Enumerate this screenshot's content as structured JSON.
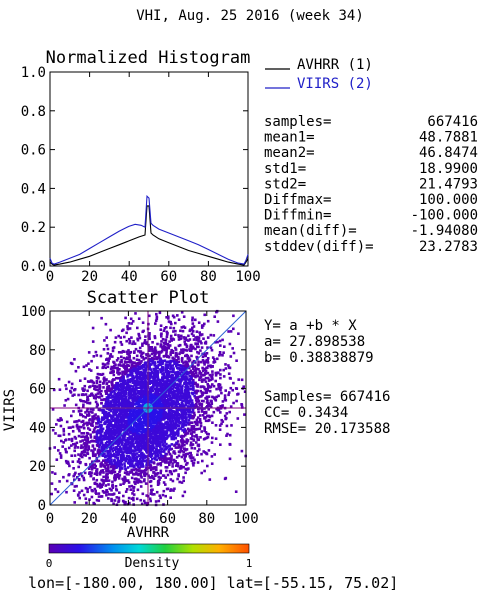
{
  "header": {
    "title": "VHI,  Aug. 25 2016 (week 34)"
  },
  "histogram": {
    "title": "Normalized Histogram",
    "legend": [
      {
        "label": "AVHRR (1)",
        "color": "#000000"
      },
      {
        "label": "VIIRS (2)",
        "color": "#2020c8"
      }
    ],
    "xticks": [
      "0",
      "20",
      "40",
      "60",
      "80",
      "100"
    ],
    "yticks": [
      "0.0",
      "0.2",
      "0.4",
      "0.6",
      "0.8",
      "1.0"
    ]
  },
  "stats": [
    {
      "label": "samples=",
      "value": "667416"
    },
    {
      "label": "mean1=",
      "value": "48.7881"
    },
    {
      "label": "mean2=",
      "value": "46.8474"
    },
    {
      "label": "std1=",
      "value": "18.9900"
    },
    {
      "label": "std2=",
      "value": "21.4793"
    },
    {
      "label": "Diffmax=",
      "value": "100.000"
    },
    {
      "label": "Diffmin=",
      "value": "-100.000"
    },
    {
      "label": "mean(diff)=",
      "value": "-1.94080"
    },
    {
      "label": "stddev(diff)=",
      "value": "23.2783"
    }
  ],
  "scatter": {
    "title": "Scatter Plot",
    "xlabel": "AVHRR",
    "ylabel": "VIIRS",
    "xticks": [
      "0",
      "20",
      "40",
      "60",
      "80",
      "100"
    ],
    "yticks": [
      "0",
      "20",
      "40",
      "60",
      "80",
      "100"
    ]
  },
  "regression": {
    "equation": "Y= a +b * X",
    "a": "a= 27.898538",
    "b": "b= 0.38838879",
    "samples": "Samples= 667416",
    "cc": "CC=  0.3434",
    "rmse": "RMSE= 20.173588"
  },
  "colorbar": {
    "label": "Density",
    "min": "0",
    "max": "1"
  },
  "footer": {
    "range": "lon=[-180.00, 180.00] lat=[-55.15, 75.02]"
  },
  "chart_data": [
    {
      "type": "line",
      "title": "Normalized Histogram",
      "xlabel": "",
      "ylabel": "",
      "xlim": [
        0,
        100
      ],
      "ylim": [
        0,
        1.0
      ],
      "legend_position": "top-right",
      "series": [
        {
          "name": "AVHRR (1)",
          "color": "#000000",
          "x": [
            0,
            1,
            2,
            5,
            10,
            15,
            20,
            25,
            30,
            35,
            40,
            45,
            48,
            49,
            50,
            51,
            52,
            55,
            60,
            65,
            70,
            75,
            80,
            85,
            90,
            95,
            98,
            99,
            100
          ],
          "y": [
            0.02,
            0.01,
            0.005,
            0.01,
            0.02,
            0.035,
            0.05,
            0.07,
            0.09,
            0.11,
            0.13,
            0.15,
            0.16,
            0.31,
            0.31,
            0.17,
            0.16,
            0.14,
            0.12,
            0.1,
            0.08,
            0.065,
            0.05,
            0.035,
            0.02,
            0.01,
            0.005,
            0.02,
            0.04
          ]
        },
        {
          "name": "VIIRS (2)",
          "color": "#2020c8",
          "x": [
            0,
            1,
            2,
            5,
            10,
            15,
            20,
            25,
            30,
            35,
            40,
            43,
            46,
            48,
            49,
            50,
            51,
            52,
            55,
            60,
            65,
            70,
            75,
            80,
            85,
            90,
            95,
            98,
            99,
            100
          ],
          "y": [
            0.04,
            0.015,
            0.01,
            0.02,
            0.04,
            0.06,
            0.09,
            0.12,
            0.15,
            0.18,
            0.205,
            0.215,
            0.21,
            0.2,
            0.36,
            0.35,
            0.22,
            0.21,
            0.19,
            0.17,
            0.15,
            0.13,
            0.11,
            0.085,
            0.06,
            0.035,
            0.015,
            0.01,
            0.03,
            0.06
          ]
        }
      ]
    },
    {
      "type": "scatter",
      "title": "Scatter Plot",
      "xlabel": "AVHRR",
      "ylabel": "VIIRS",
      "xlim": [
        0,
        100
      ],
      "ylim": [
        0,
        100
      ],
      "samples": 667416,
      "mean_x": 48.7881,
      "mean_y": 46.8474,
      "std_x": 18.99,
      "std_y": 21.4793,
      "cc": 0.3434,
      "regression": {
        "a": 27.898538,
        "b": 0.38838879
      },
      "reference_lines": [
        "y = x",
        "x = 50",
        "y = 50"
      ]
    }
  ]
}
